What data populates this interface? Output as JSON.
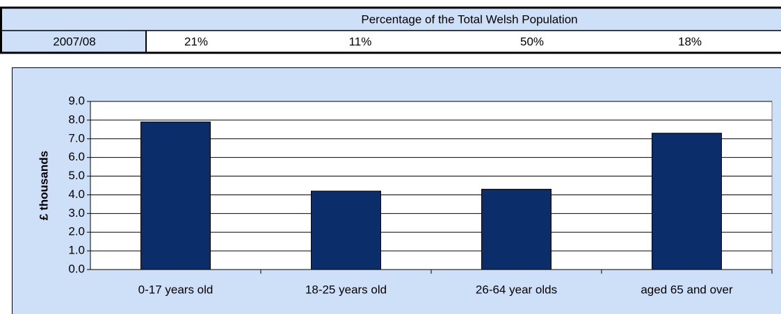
{
  "table": {
    "header": "Percentage of the Total Welsh Population",
    "rows": [
      [
        "2007/08",
        "21%",
        "11%",
        "50%",
        "18%"
      ]
    ]
  },
  "chart_data": {
    "type": "bar",
    "ylabel": "£ thousands",
    "categories": [
      "0-17 years old",
      "18-25 years old",
      "26-64 year olds",
      "aged 65 and over"
    ],
    "values": [
      7.9,
      4.2,
      4.3,
      7.3
    ],
    "color": "#0b2e6b",
    "ylim": [
      0,
      9
    ],
    "yticks": [
      {
        "value": 0,
        "label": "0.0"
      },
      {
        "value": 1,
        "label": "1.0"
      },
      {
        "value": 2,
        "label": "2.0"
      },
      {
        "value": 3,
        "label": "3.0"
      },
      {
        "value": 4,
        "label": "4.0"
      },
      {
        "value": 5,
        "label": "5.0"
      },
      {
        "value": 6,
        "label": "6.0"
      },
      {
        "value": 7,
        "label": "7.0"
      },
      {
        "value": 8,
        "label": "8.0"
      },
      {
        "value": 9,
        "label": "9.0"
      }
    ],
    "grid": true
  }
}
